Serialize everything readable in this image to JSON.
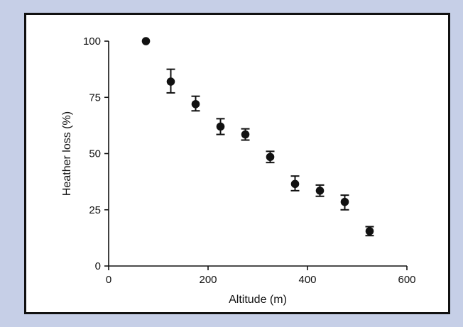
{
  "chart_data": {
    "type": "scatter",
    "title": "",
    "xlabel": "Altitude (m)",
    "ylabel": "Heather loss (%)",
    "xlim": [
      0,
      600
    ],
    "ylim": [
      0,
      100
    ],
    "x_ticks": [
      "0",
      "200",
      "400",
      "600"
    ],
    "y_ticks": [
      "0",
      "25",
      "50",
      "75",
      "100"
    ],
    "x_tick_values": [
      0,
      200,
      400,
      600
    ],
    "y_tick_values": [
      0,
      25,
      50,
      75,
      100
    ],
    "grid": false,
    "legend": "none",
    "colors": {
      "background": "#c6cfe7",
      "panel": "#ffffff",
      "marker": "#111111"
    },
    "series": [
      {
        "points": [
          {
            "x": 75,
            "y": 100,
            "err_low": 0,
            "err_high": 0
          },
          {
            "x": 125,
            "y": 82,
            "err_low": 5,
            "err_high": 5.5
          },
          {
            "x": 175,
            "y": 72,
            "err_low": 3,
            "err_high": 3.5
          },
          {
            "x": 225,
            "y": 62,
            "err_low": 3.5,
            "err_high": 3.5
          },
          {
            "x": 275,
            "y": 58.5,
            "err_low": 2.5,
            "err_high": 2.5
          },
          {
            "x": 325,
            "y": 48.5,
            "err_low": 2.5,
            "err_high": 2.5
          },
          {
            "x": 375,
            "y": 36.5,
            "err_low": 3,
            "err_high": 3.5
          },
          {
            "x": 425,
            "y": 33.5,
            "err_low": 2.5,
            "err_high": 2.5
          },
          {
            "x": 475,
            "y": 28.5,
            "err_low": 3.5,
            "err_high": 3
          },
          {
            "x": 525,
            "y": 15.5,
            "err_low": 2,
            "err_high": 2
          }
        ]
      }
    ]
  }
}
